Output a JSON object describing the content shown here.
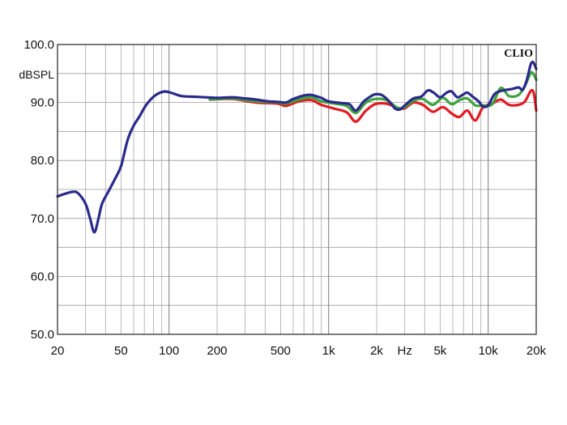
{
  "chart_data": {
    "type": "line",
    "brand": "CLIO",
    "ylabel": "dBSPL",
    "xlabel": "Hz",
    "xscale": "log",
    "xlim": [
      20,
      20000
    ],
    "ylim": [
      50,
      100
    ],
    "grid": true,
    "y_ticks": [
      {
        "value": 50,
        "label": "50.0"
      },
      {
        "value": 60,
        "label": "60.0"
      },
      {
        "value": 70,
        "label": "70.0"
      },
      {
        "value": 80,
        "label": "80.0"
      },
      {
        "value": 90,
        "label": "90.0"
      },
      {
        "value": 100,
        "label": "100.0"
      }
    ],
    "x_ticks": [
      {
        "value": 20,
        "label": "20"
      },
      {
        "value": 50,
        "label": "50"
      },
      {
        "value": 100,
        "label": "100"
      },
      {
        "value": 200,
        "label": "200"
      },
      {
        "value": 500,
        "label": "500"
      },
      {
        "value": 1000,
        "label": "1k"
      },
      {
        "value": 2000,
        "label": "2k"
      },
      {
        "value": 5000,
        "label": "5k"
      },
      {
        "value": 10000,
        "label": "10k"
      },
      {
        "value": 20000,
        "label": "20k"
      }
    ],
    "series": [
      {
        "color": "#e21b23",
        "points": [
          [
            180,
            90.5
          ],
          [
            250,
            90.6
          ],
          [
            350,
            90.0
          ],
          [
            480,
            89.8
          ],
          [
            540,
            89.4
          ],
          [
            650,
            90.2
          ],
          [
            780,
            90.4
          ],
          [
            900,
            89.6
          ],
          [
            1100,
            88.9
          ],
          [
            1300,
            88.3
          ],
          [
            1480,
            86.7
          ],
          [
            1700,
            88.5
          ],
          [
            1950,
            89.7
          ],
          [
            2300,
            89.8
          ],
          [
            2700,
            89.1
          ],
          [
            3000,
            89.0
          ],
          [
            3400,
            90.0
          ],
          [
            3900,
            89.6
          ],
          [
            4500,
            88.4
          ],
          [
            5200,
            89.2
          ],
          [
            5900,
            88.1
          ],
          [
            6600,
            87.5
          ],
          [
            7400,
            88.6
          ],
          [
            8300,
            86.9
          ],
          [
            9300,
            89.2
          ],
          [
            10600,
            89.8
          ],
          [
            12000,
            90.5
          ],
          [
            13500,
            89.6
          ],
          [
            15500,
            89.6
          ],
          [
            17000,
            90.2
          ],
          [
            18500,
            92.0
          ],
          [
            19300,
            91.6
          ],
          [
            20000,
            88.6
          ]
        ]
      },
      {
        "color": "#3da33d",
        "points": [
          [
            180,
            90.5
          ],
          [
            250,
            90.7
          ],
          [
            350,
            90.2
          ],
          [
            480,
            90.0
          ],
          [
            540,
            89.8
          ],
          [
            650,
            90.5
          ],
          [
            780,
            90.9
          ],
          [
            900,
            90.2
          ],
          [
            1100,
            89.8
          ],
          [
            1300,
            89.4
          ],
          [
            1480,
            88.2
          ],
          [
            1700,
            89.9
          ],
          [
            1950,
            90.6
          ],
          [
            2300,
            90.4
          ],
          [
            2700,
            89.1
          ],
          [
            3000,
            89.2
          ],
          [
            3400,
            90.3
          ],
          [
            3900,
            90.6
          ],
          [
            4500,
            89.6
          ],
          [
            5200,
            90.8
          ],
          [
            5900,
            89.7
          ],
          [
            6600,
            90.4
          ],
          [
            7400,
            90.7
          ],
          [
            8300,
            89.5
          ],
          [
            9300,
            89.5
          ],
          [
            10600,
            89.7
          ],
          [
            12000,
            92.5
          ],
          [
            13500,
            91.1
          ],
          [
            15500,
            91.3
          ],
          [
            17000,
            92.9
          ],
          [
            18500,
            95.1
          ],
          [
            19300,
            94.8
          ],
          [
            20000,
            93.9
          ]
        ]
      },
      {
        "color": "#2a2a8c",
        "points": [
          [
            20,
            73.8
          ],
          [
            22,
            74.2
          ],
          [
            25,
            74.6
          ],
          [
            27,
            74.3
          ],
          [
            30,
            72.5
          ],
          [
            32,
            70.0
          ],
          [
            34,
            67.6
          ],
          [
            36,
            69.8
          ],
          [
            38,
            72.5
          ],
          [
            42,
            74.8
          ],
          [
            46,
            76.9
          ],
          [
            50,
            79.0
          ],
          [
            55,
            83.5
          ],
          [
            60,
            86.0
          ],
          [
            65,
            87.5
          ],
          [
            72,
            89.6
          ],
          [
            80,
            91.0
          ],
          [
            88,
            91.7
          ],
          [
            95,
            91.9
          ],
          [
            105,
            91.6
          ],
          [
            120,
            91.1
          ],
          [
            140,
            91.0
          ],
          [
            170,
            90.9
          ],
          [
            200,
            90.8
          ],
          [
            250,
            90.9
          ],
          [
            300,
            90.7
          ],
          [
            350,
            90.5
          ],
          [
            420,
            90.2
          ],
          [
            480,
            90.1
          ],
          [
            540,
            90.0
          ],
          [
            600,
            90.6
          ],
          [
            700,
            91.2
          ],
          [
            780,
            91.3
          ],
          [
            900,
            90.8
          ],
          [
            1000,
            90.2
          ],
          [
            1200,
            89.9
          ],
          [
            1350,
            89.7
          ],
          [
            1480,
            88.6
          ],
          [
            1650,
            90.1
          ],
          [
            1800,
            90.9
          ],
          [
            1950,
            91.4
          ],
          [
            2150,
            91.3
          ],
          [
            2400,
            90.2
          ],
          [
            2600,
            89.0
          ],
          [
            2800,
            88.8
          ],
          [
            3000,
            89.5
          ],
          [
            3400,
            90.7
          ],
          [
            3800,
            91.0
          ],
          [
            4200,
            92.1
          ],
          [
            4600,
            91.6
          ],
          [
            5000,
            90.9
          ],
          [
            5500,
            91.7
          ],
          [
            5900,
            91.9
          ],
          [
            6400,
            90.9
          ],
          [
            6900,
            91.3
          ],
          [
            7400,
            91.7
          ],
          [
            8000,
            91.0
          ],
          [
            8700,
            90.2
          ],
          [
            9300,
            89.3
          ],
          [
            10000,
            89.5
          ],
          [
            11000,
            91.5
          ],
          [
            12500,
            92.1
          ],
          [
            14000,
            92.3
          ],
          [
            15500,
            92.6
          ],
          [
            16500,
            92.2
          ],
          [
            17500,
            94.0
          ],
          [
            18500,
            96.6
          ],
          [
            19200,
            96.9
          ],
          [
            20000,
            95.8
          ]
        ]
      }
    ]
  }
}
